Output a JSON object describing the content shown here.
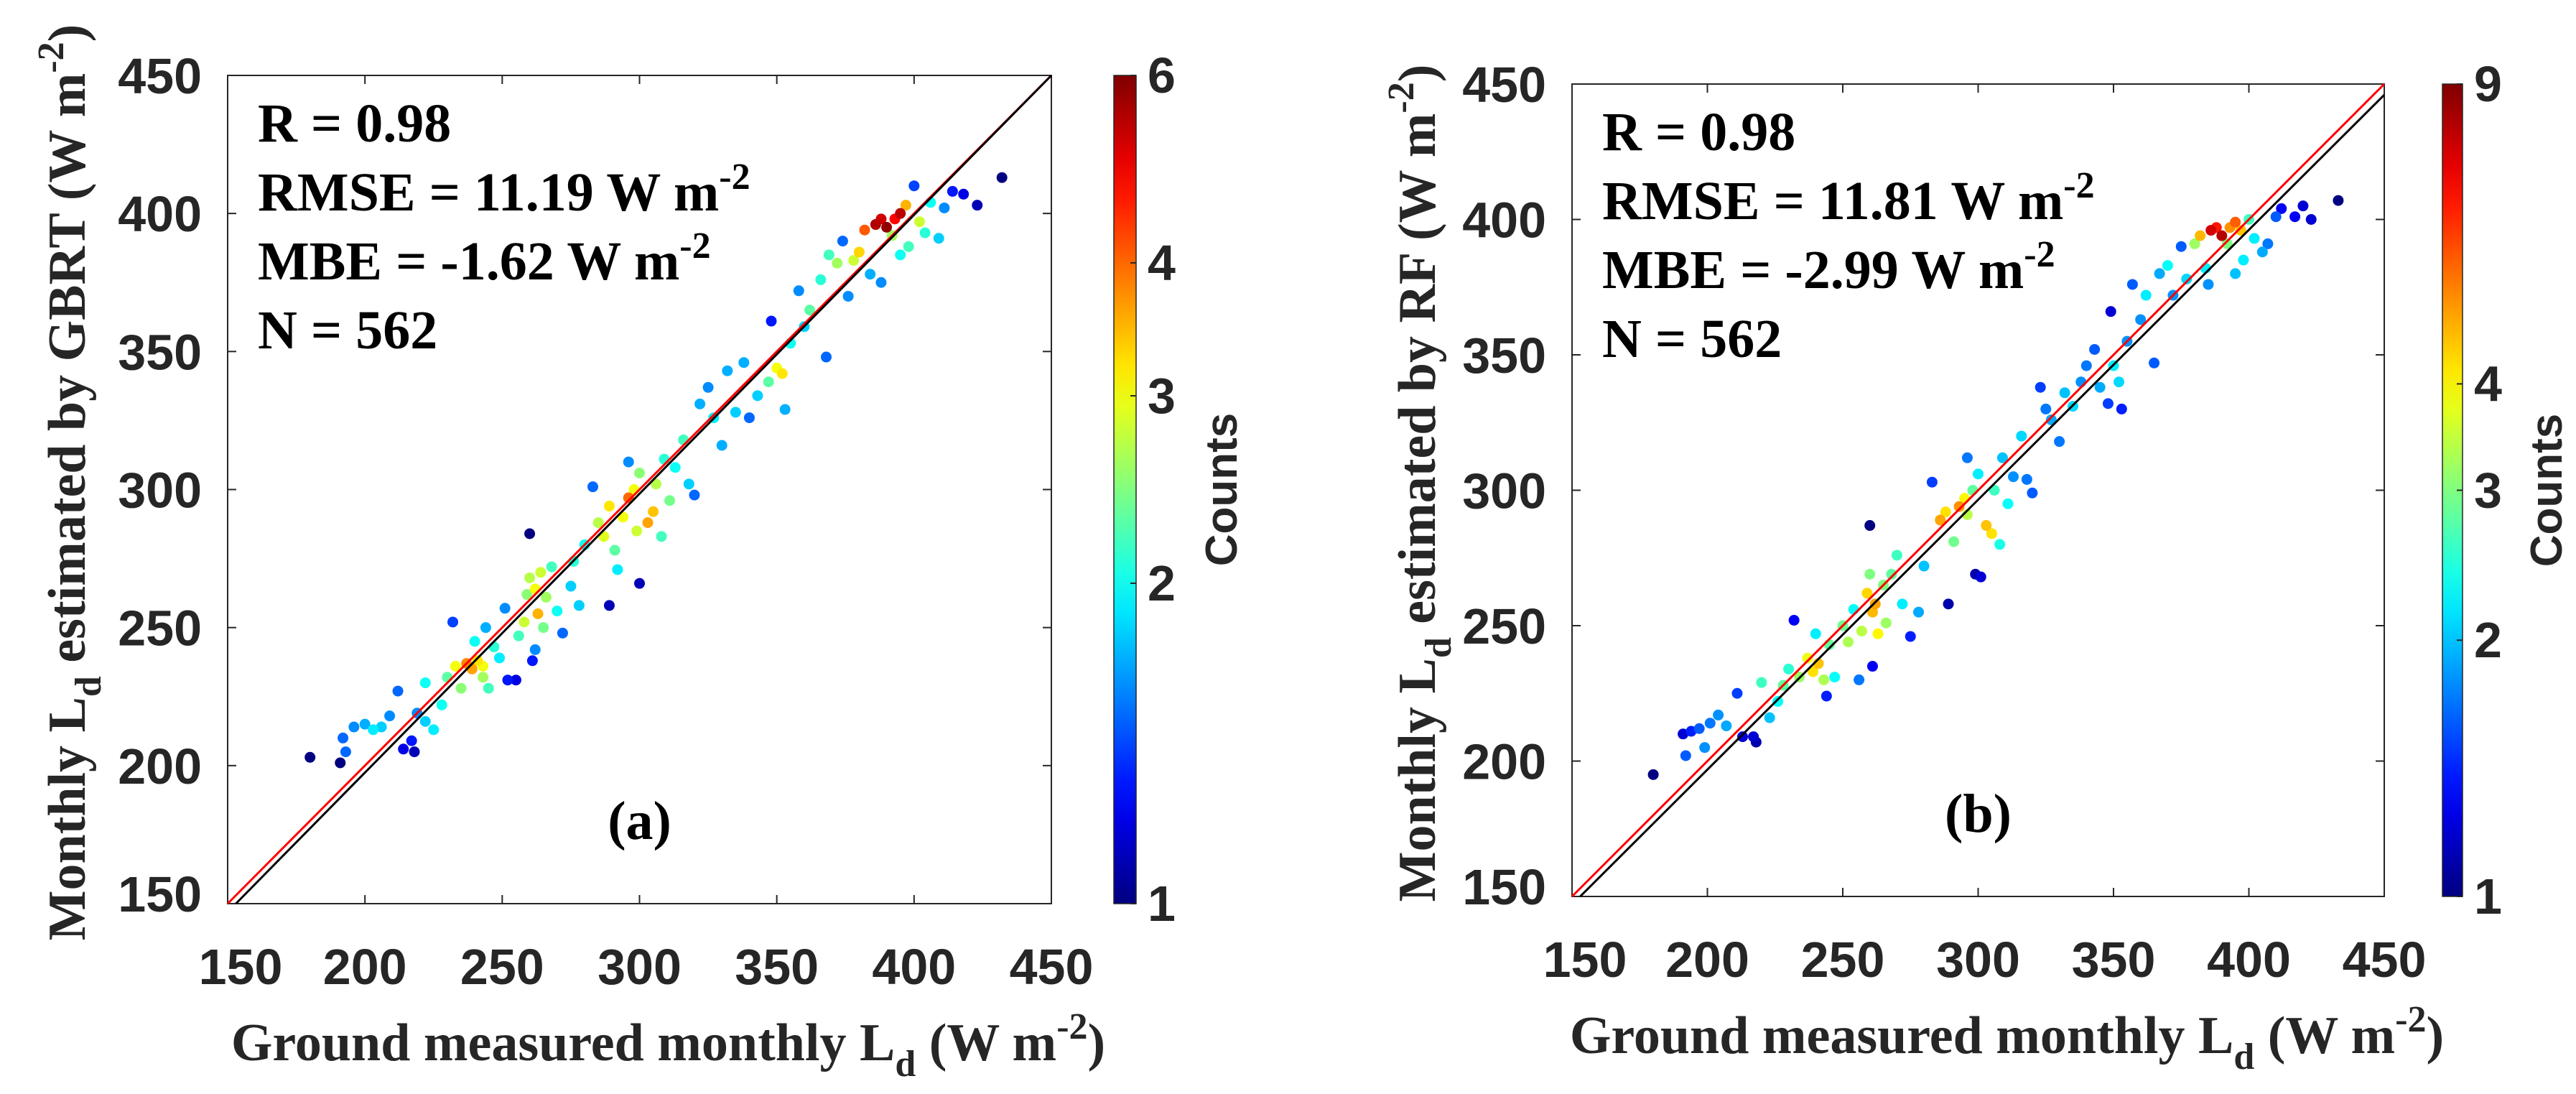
{
  "chart_data": [
    {
      "type": "scatter",
      "panel_label": "(a)",
      "xlabel": {
        "prefix": "Ground measured monthly L",
        "sub": "d",
        "mid": " (W m",
        "sup": "-2",
        "suffix": ")"
      },
      "ylabel": {
        "prefix": "Monthly L",
        "sub": "d",
        "mid": " estimated by GBRT (W m",
        "sup": "-2",
        "suffix": ")"
      },
      "xlim": [
        150,
        450
      ],
      "ylim": [
        150,
        450
      ],
      "xticks": [
        "150",
        "200",
        "250",
        "300",
        "350",
        "400",
        "450"
      ],
      "yticks": [
        "150",
        "200",
        "250",
        "300",
        "350",
        "400",
        "450"
      ],
      "grid": false,
      "stats": [
        {
          "text": "R = 0.98",
          "sup": ""
        },
        {
          "text": "RMSE = 11.19  W m",
          "sup": "-2"
        },
        {
          "text": "MBE = -1.62   W m",
          "sup": "-2"
        },
        {
          "text": "N = 562",
          "sup": ""
        }
      ],
      "one_to_one_line": {
        "color": "#ff0000",
        "from": [
          150,
          150
        ],
        "to": [
          450,
          450
        ]
      },
      "fit_line": {
        "color": "#000000",
        "from": [
          153,
          150
        ],
        "to": [
          450,
          450
        ]
      },
      "colorbar": {
        "label": "Counts",
        "colormap": "jet",
        "scale": "log",
        "clim": [
          1,
          6
        ],
        "ticks": [
          "1",
          "2",
          "3",
          "4",
          "6"
        ]
      },
      "points": [
        [
          180,
          203,
          1
        ],
        [
          191,
          201,
          1
        ],
        [
          192,
          210,
          1.5
        ],
        [
          193,
          205,
          1.5
        ],
        [
          196,
          214,
          1.6
        ],
        [
          200,
          215,
          1.7
        ],
        [
          203,
          213,
          1.9
        ],
        [
          206,
          214,
          1.8
        ],
        [
          209,
          218,
          1.6
        ],
        [
          212,
          227,
          1.5
        ],
        [
          214,
          206,
          1.2
        ],
        [
          217,
          209,
          1.3
        ],
        [
          218,
          205,
          1.1
        ],
        [
          219,
          219,
          1.6
        ],
        [
          222,
          216,
          1.8
        ],
        [
          222,
          230,
          2
        ],
        [
          225,
          213,
          1.9
        ],
        [
          228,
          222,
          2
        ],
        [
          230,
          232,
          2.3
        ],
        [
          232,
          252,
          1.4
        ],
        [
          233,
          236,
          3
        ],
        [
          235,
          228,
          2.5
        ],
        [
          237,
          237,
          3.8
        ],
        [
          239,
          235,
          3.6
        ],
        [
          241,
          238,
          3.2
        ],
        [
          243,
          236,
          3
        ],
        [
          243,
          232,
          2.6
        ],
        [
          245,
          228,
          2.2
        ],
        [
          240,
          245,
          2
        ],
        [
          244,
          250,
          1.7
        ],
        [
          247,
          243,
          2.1
        ],
        [
          249,
          239,
          1.9
        ],
        [
          251,
          257,
          1.6
        ],
        [
          252,
          231,
          1.3
        ],
        [
          255,
          231,
          1.2
        ],
        [
          256,
          247,
          2.2
        ],
        [
          258,
          252,
          2.8
        ],
        [
          259,
          262,
          2.5
        ],
        [
          260,
          268,
          2.7
        ],
        [
          262,
          264,
          3
        ],
        [
          263,
          255,
          3.5
        ],
        [
          264,
          270,
          2.8
        ],
        [
          265,
          250,
          2.4
        ],
        [
          266,
          261,
          2.6
        ],
        [
          268,
          272,
          2.2
        ],
        [
          270,
          256,
          2
        ],
        [
          272,
          248,
          1.5
        ],
        [
          275,
          265,
          1.8
        ],
        [
          276,
          274,
          2.1
        ],
        [
          261,
          238,
          1.3
        ],
        [
          260,
          284,
          1
        ],
        [
          262,
          242,
          1.6
        ],
        [
          278,
          258,
          1.8
        ],
        [
          280,
          280,
          2
        ],
        [
          283,
          301,
          1.5
        ],
        [
          285,
          288,
          2.7
        ],
        [
          287,
          283,
          2.9
        ],
        [
          289,
          294,
          3.2
        ],
        [
          291,
          278,
          2.3
        ],
        [
          292,
          271,
          1.9
        ],
        [
          294,
          290,
          3
        ],
        [
          296,
          297,
          4
        ],
        [
          298,
          300,
          3
        ],
        [
          300,
          306,
          2.5
        ],
        [
          299,
          285,
          2.8
        ],
        [
          303,
          288,
          3.6
        ],
        [
          305,
          292,
          3.4
        ],
        [
          306,
          302,
          2.7
        ],
        [
          308,
          283,
          2.2
        ],
        [
          309,
          311,
          2.1
        ],
        [
          311,
          296,
          2.4
        ],
        [
          313,
          308,
          2
        ],
        [
          296,
          310,
          1.6
        ],
        [
          300,
          266,
          1.1
        ],
        [
          289,
          258,
          1.1
        ],
        [
          316,
          318,
          2.2
        ],
        [
          318,
          302,
          1.8
        ],
        [
          320,
          298,
          1.5
        ],
        [
          322,
          331,
          1.7
        ],
        [
          325,
          337,
          1.6
        ],
        [
          327,
          326,
          1.9
        ],
        [
          330,
          316,
          1.7
        ],
        [
          332,
          343,
          1.7
        ],
        [
          335,
          328,
          1.8
        ],
        [
          338,
          346,
          1.7
        ],
        [
          340,
          326,
          1.5
        ],
        [
          343,
          334,
          1.8
        ],
        [
          347,
          339,
          2.3
        ],
        [
          350,
          344,
          3
        ],
        [
          352,
          342,
          3.2
        ],
        [
          353,
          329,
          1.7
        ],
        [
          348,
          361,
          1.3
        ],
        [
          355,
          353,
          2
        ],
        [
          358,
          372,
          1.6
        ],
        [
          360,
          359,
          1.8
        ],
        [
          362,
          365,
          2.3
        ],
        [
          366,
          376,
          2.1
        ],
        [
          368,
          348,
          1.5
        ],
        [
          369,
          385,
          2.2
        ],
        [
          372,
          382,
          2.6
        ],
        [
          374,
          390,
          1.5
        ],
        [
          376,
          370,
          1.6
        ],
        [
          378,
          383,
          2.8
        ],
        [
          380,
          386,
          3.3
        ],
        [
          382,
          394,
          4.1
        ],
        [
          384,
          378,
          1.7
        ],
        [
          386,
          396,
          5.5
        ],
        [
          388,
          398,
          5.2
        ],
        [
          390,
          395,
          5.8
        ],
        [
          392,
          392,
          2.6
        ],
        [
          393,
          398,
          4.8
        ],
        [
          395,
          400,
          5.4
        ],
        [
          397,
          403,
          3.5
        ],
        [
          398,
          388,
          2.2
        ],
        [
          400,
          410,
          1.4
        ],
        [
          402,
          397,
          2.8
        ],
        [
          404,
          393,
          2.1
        ],
        [
          406,
          404,
          2
        ],
        [
          409,
          391,
          1.8
        ],
        [
          411,
          402,
          1.6
        ],
        [
          414,
          408,
          1.3
        ],
        [
          418,
          407,
          1.2
        ],
        [
          423,
          403,
          1.1
        ],
        [
          432,
          413,
          1
        ],
        [
          388,
          375,
          1.6
        ],
        [
          395,
          385,
          2
        ]
      ]
    },
    {
      "type": "scatter",
      "panel_label": "(b)",
      "xlabel": {
        "prefix": "Ground measured monthly L",
        "sub": "d",
        "mid": " (W m",
        "sup": "-2",
        "suffix": ")"
      },
      "ylabel": {
        "prefix": "Monthly L",
        "sub": "d",
        "mid": " estimated by RF (W m",
        "sup": "-2",
        "suffix": ")"
      },
      "xlim": [
        150,
        450
      ],
      "ylim": [
        150,
        450
      ],
      "xticks": [
        "150",
        "200",
        "250",
        "300",
        "350",
        "400",
        "450"
      ],
      "yticks": [
        "150",
        "200",
        "250",
        "300",
        "350",
        "400",
        "450"
      ],
      "grid": false,
      "stats": [
        {
          "text": "R = 0.98",
          "sup": ""
        },
        {
          "text": "RMSE = 11.81  W m",
          "sup": "-2"
        },
        {
          "text": "MBE = -2.99   W m",
          "sup": "-2"
        },
        {
          "text": "N = 562",
          "sup": ""
        }
      ],
      "one_to_one_line": {
        "color": "#ff0000",
        "from": [
          150,
          150
        ],
        "to": [
          450,
          450
        ]
      },
      "fit_line": {
        "color": "#000000",
        "from": [
          153,
          150
        ],
        "to": [
          450,
          446
        ]
      },
      "colorbar": {
        "label": "Counts",
        "colormap": "jet",
        "scale": "log",
        "clim": [
          1,
          9
        ],
        "ticks": [
          "1",
          "2",
          "3",
          "4",
          "9"
        ]
      },
      "points": [
        [
          180,
          195,
          1
        ],
        [
          191,
          210,
          1.2
        ],
        [
          192,
          202,
          1.6
        ],
        [
          194,
          211,
          1.4
        ],
        [
          197,
          212,
          1.6
        ],
        [
          199,
          205,
          1.8
        ],
        [
          201,
          214,
          1.7
        ],
        [
          204,
          217,
          1.8
        ],
        [
          207,
          213,
          1.9
        ],
        [
          211,
          225,
          1.5
        ],
        [
          213,
          209,
          1.2
        ],
        [
          217,
          209,
          1.2
        ],
        [
          218,
          207,
          1.1
        ],
        [
          220,
          229,
          2.6
        ],
        [
          223,
          216,
          2
        ],
        [
          226,
          222,
          2.3
        ],
        [
          228,
          228,
          2.8
        ],
        [
          230,
          234,
          2.5
        ],
        [
          232,
          252,
          1.3
        ],
        [
          234,
          231,
          3.2
        ],
        [
          237,
          238,
          3.8
        ],
        [
          239,
          233,
          4.2
        ],
        [
          241,
          236,
          4.5
        ],
        [
          243,
          230,
          3.3
        ],
        [
          244,
          224,
          1.4
        ],
        [
          240,
          247,
          2.2
        ],
        [
          245,
          243,
          2.8
        ],
        [
          247,
          231,
          2.3
        ],
        [
          250,
          250,
          2.9
        ],
        [
          252,
          244,
          3.3
        ],
        [
          254,
          256,
          2.3
        ],
        [
          256,
          230,
          1.7
        ],
        [
          257,
          248,
          3.4
        ],
        [
          259,
          262,
          4.3
        ],
        [
          260,
          269,
          3
        ],
        [
          261,
          255,
          4.6
        ],
        [
          262,
          258,
          4.8
        ],
        [
          263,
          247,
          4
        ],
        [
          265,
          265,
          3
        ],
        [
          266,
          251,
          3.2
        ],
        [
          268,
          269,
          2.8
        ],
        [
          270,
          276,
          2.6
        ],
        [
          272,
          258,
          2.2
        ],
        [
          275,
          246,
          1.4
        ],
        [
          278,
          255,
          1.9
        ],
        [
          280,
          272,
          2
        ],
        [
          260,
          287,
          1
        ],
        [
          261,
          235,
          1.3
        ],
        [
          283,
          303,
          1.5
        ],
        [
          286,
          289,
          4.8
        ],
        [
          288,
          292,
          4.2
        ],
        [
          289,
          258,
          1.1
        ],
        [
          291,
          281,
          2.9
        ],
        [
          293,
          294,
          5
        ],
        [
          295,
          297,
          4
        ],
        [
          296,
          291,
          3.4
        ],
        [
          298,
          300,
          2.8
        ],
        [
          300,
          306,
          2.2
        ],
        [
          299,
          269,
          1.1
        ],
        [
          301,
          268,
          1.2
        ],
        [
          303,
          287,
          4.5
        ],
        [
          305,
          284,
          4.2
        ],
        [
          306,
          300,
          2.6
        ],
        [
          308,
          280,
          2.4
        ],
        [
          309,
          312,
          2
        ],
        [
          311,
          295,
          2.3
        ],
        [
          313,
          305,
          1.8
        ],
        [
          296,
          312,
          1.7
        ],
        [
          316,
          320,
          2.1
        ],
        [
          318,
          304,
          1.7
        ],
        [
          320,
          299,
          1.6
        ],
        [
          323,
          338,
          1.5
        ],
        [
          325,
          330,
          1.7
        ],
        [
          327,
          326,
          1.9
        ],
        [
          330,
          318,
          1.7
        ],
        [
          332,
          336,
          2
        ],
        [
          335,
          331,
          2.1
        ],
        [
          338,
          340,
          1.8
        ],
        [
          340,
          346,
          1.7
        ],
        [
          343,
          352,
          1.6
        ],
        [
          345,
          338,
          1.9
        ],
        [
          348,
          332,
          1.5
        ],
        [
          350,
          346,
          2.2
        ],
        [
          352,
          340,
          2.1
        ],
        [
          353,
          330,
          1.4
        ],
        [
          349,
          366,
          1.2
        ],
        [
          355,
          355,
          1.8
        ],
        [
          357,
          376,
          1.6
        ],
        [
          360,
          363,
          1.8
        ],
        [
          362,
          372,
          2.2
        ],
        [
          365,
          347,
          1.6
        ],
        [
          367,
          380,
          1.9
        ],
        [
          370,
          383,
          2.3
        ],
        [
          372,
          372,
          1.8
        ],
        [
          375,
          390,
          1.6
        ],
        [
          377,
          378,
          2.1
        ],
        [
          380,
          391,
          3.2
        ],
        [
          382,
          394,
          4.6
        ],
        [
          384,
          382,
          2.2
        ],
        [
          386,
          396,
          7.5
        ],
        [
          388,
          397,
          6.5
        ],
        [
          390,
          394,
          8
        ],
        [
          392,
          391,
          3
        ],
        [
          393,
          397,
          5
        ],
        [
          395,
          399,
          5.6
        ],
        [
          397,
          396,
          4.5
        ],
        [
          398,
          385,
          2.2
        ],
        [
          400,
          400,
          2.6
        ],
        [
          402,
          393,
          2.2
        ],
        [
          405,
          388,
          1.9
        ],
        [
          407,
          391,
          1.7
        ],
        [
          410,
          401,
          1.6
        ],
        [
          412,
          404,
          1.3
        ],
        [
          417,
          401,
          1.3
        ],
        [
          420,
          405,
          1.2
        ],
        [
          423,
          400,
          1.2
        ],
        [
          433,
          407,
          1
        ],
        [
          385,
          376,
          1.8
        ],
        [
          395,
          380,
          2
        ]
      ]
    }
  ]
}
